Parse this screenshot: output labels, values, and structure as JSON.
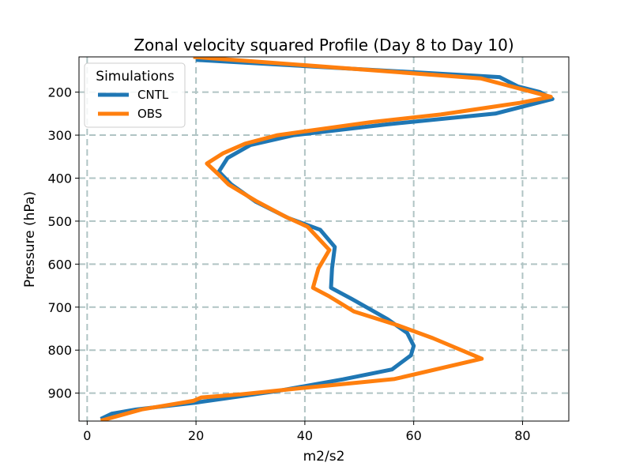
{
  "chart_data": {
    "type": "line",
    "title": "Zonal velocity squared Profile (Day 8 to Day 10)",
    "xlabel": "m2/s2",
    "ylabel": "Pressure (hPa)",
    "xlim": [
      -1.5,
      88.5
    ],
    "ylim": [
      965,
      118
    ],
    "y_inverted": true,
    "grid": true,
    "grid_style": "dashed",
    "xticks": [
      0,
      20,
      40,
      60,
      80
    ],
    "xtick_labels": [
      "0",
      "20",
      "40",
      "60",
      "80"
    ],
    "yticks": [
      200,
      300,
      400,
      500,
      600,
      700,
      800,
      900
    ],
    "ytick_labels": [
      "200",
      "300",
      "400",
      "500",
      "600",
      "700",
      "800",
      "900"
    ],
    "legend": {
      "title": "Simulations",
      "position": "top-left"
    },
    "series": [
      {
        "name": "CNTL",
        "color": "#1f77b4",
        "points": [
          [
            20,
            125
          ],
          [
            75.8,
            165
          ],
          [
            79.2,
            187
          ],
          [
            83.2,
            200
          ],
          [
            85.5,
            216
          ],
          [
            75,
            250
          ],
          [
            55,
            275
          ],
          [
            38,
            300
          ],
          [
            30,
            323
          ],
          [
            25.8,
            353
          ],
          [
            24.2,
            385
          ],
          [
            26.5,
            415
          ],
          [
            31,
            455
          ],
          [
            37,
            493
          ],
          [
            42.8,
            520
          ],
          [
            45.5,
            560
          ],
          [
            45,
            610
          ],
          [
            44.8,
            655
          ],
          [
            48.5,
            680
          ],
          [
            55.2,
            728
          ],
          [
            58.8,
            760
          ],
          [
            60,
            790
          ],
          [
            59.5,
            812
          ],
          [
            56,
            845
          ],
          [
            47,
            868
          ],
          [
            35,
            895
          ],
          [
            20,
            922
          ],
          [
            9,
            938
          ],
          [
            4.5,
            948
          ],
          [
            2.5,
            960
          ]
        ]
      },
      {
        "name": "OBS",
        "color": "#ff7f0e",
        "points": [
          [
            19.5,
            118
          ],
          [
            72.3,
            168
          ],
          [
            85.2,
            211
          ],
          [
            79.5,
            225
          ],
          [
            65,
            252
          ],
          [
            52,
            270
          ],
          [
            35,
            300
          ],
          [
            29,
            320
          ],
          [
            25,
            342
          ],
          [
            22,
            366
          ],
          [
            24,
            390
          ],
          [
            26,
            415
          ],
          [
            31,
            453
          ],
          [
            36.5,
            490
          ],
          [
            40.5,
            513
          ],
          [
            44.5,
            567
          ],
          [
            42.5,
            610
          ],
          [
            41.5,
            655
          ],
          [
            44.5,
            675
          ],
          [
            49,
            710
          ],
          [
            57,
            742
          ],
          [
            63.5,
            772
          ],
          [
            72.5,
            820
          ],
          [
            56.5,
            867
          ],
          [
            38,
            890
          ],
          [
            28,
            903
          ],
          [
            21,
            910
          ],
          [
            19.5,
            918
          ],
          [
            10,
            938
          ],
          [
            2.5,
            964
          ]
        ]
      }
    ]
  }
}
